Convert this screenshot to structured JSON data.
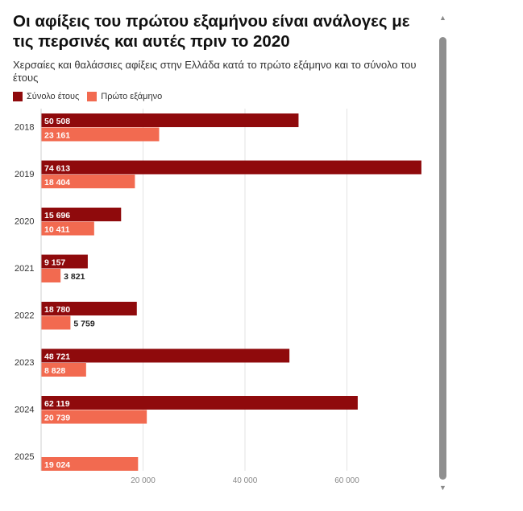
{
  "chart_data": {
    "type": "bar",
    "orientation": "horizontal",
    "title": "Οι αφίξεις του πρώτου εξαμήνου είναι ανάλογες με τις περσινές και αυτές πριν το 2020",
    "subtitle": "Χερσαίες και θαλάσσιες αφίξεις στην Ελλάδα κατά το πρώτο εξάμηνο και το σύνολο του έτους",
    "categories": [
      "2018",
      "2019",
      "2020",
      "2021",
      "2022",
      "2023",
      "2024",
      "2025"
    ],
    "series": [
      {
        "name": "Σύνολο έτους",
        "color": "#8f0a0c",
        "values": [
          50508,
          74613,
          15696,
          9157,
          18780,
          48721,
          62119,
          null
        ],
        "labels": [
          "50 508",
          "74 613",
          "15 696",
          "9 157",
          "18 780",
          "48 721",
          "62 119",
          ""
        ]
      },
      {
        "name": "Πρώτο εξάμηνο",
        "color": "#f26a50",
        "values": [
          23161,
          18404,
          10411,
          3821,
          5759,
          8828,
          20739,
          19024
        ],
        "labels": [
          "23 161",
          "18 404",
          "10 411",
          "3 821",
          "5 759",
          "8 828",
          "20 739",
          "19 024"
        ]
      }
    ],
    "x_ticks": [
      20000,
      40000,
      60000
    ],
    "x_tick_labels": [
      "20 000",
      "40 000",
      "60 000"
    ],
    "xlim": [
      0,
      75000
    ],
    "legend": "top-left",
    "grid": true
  }
}
